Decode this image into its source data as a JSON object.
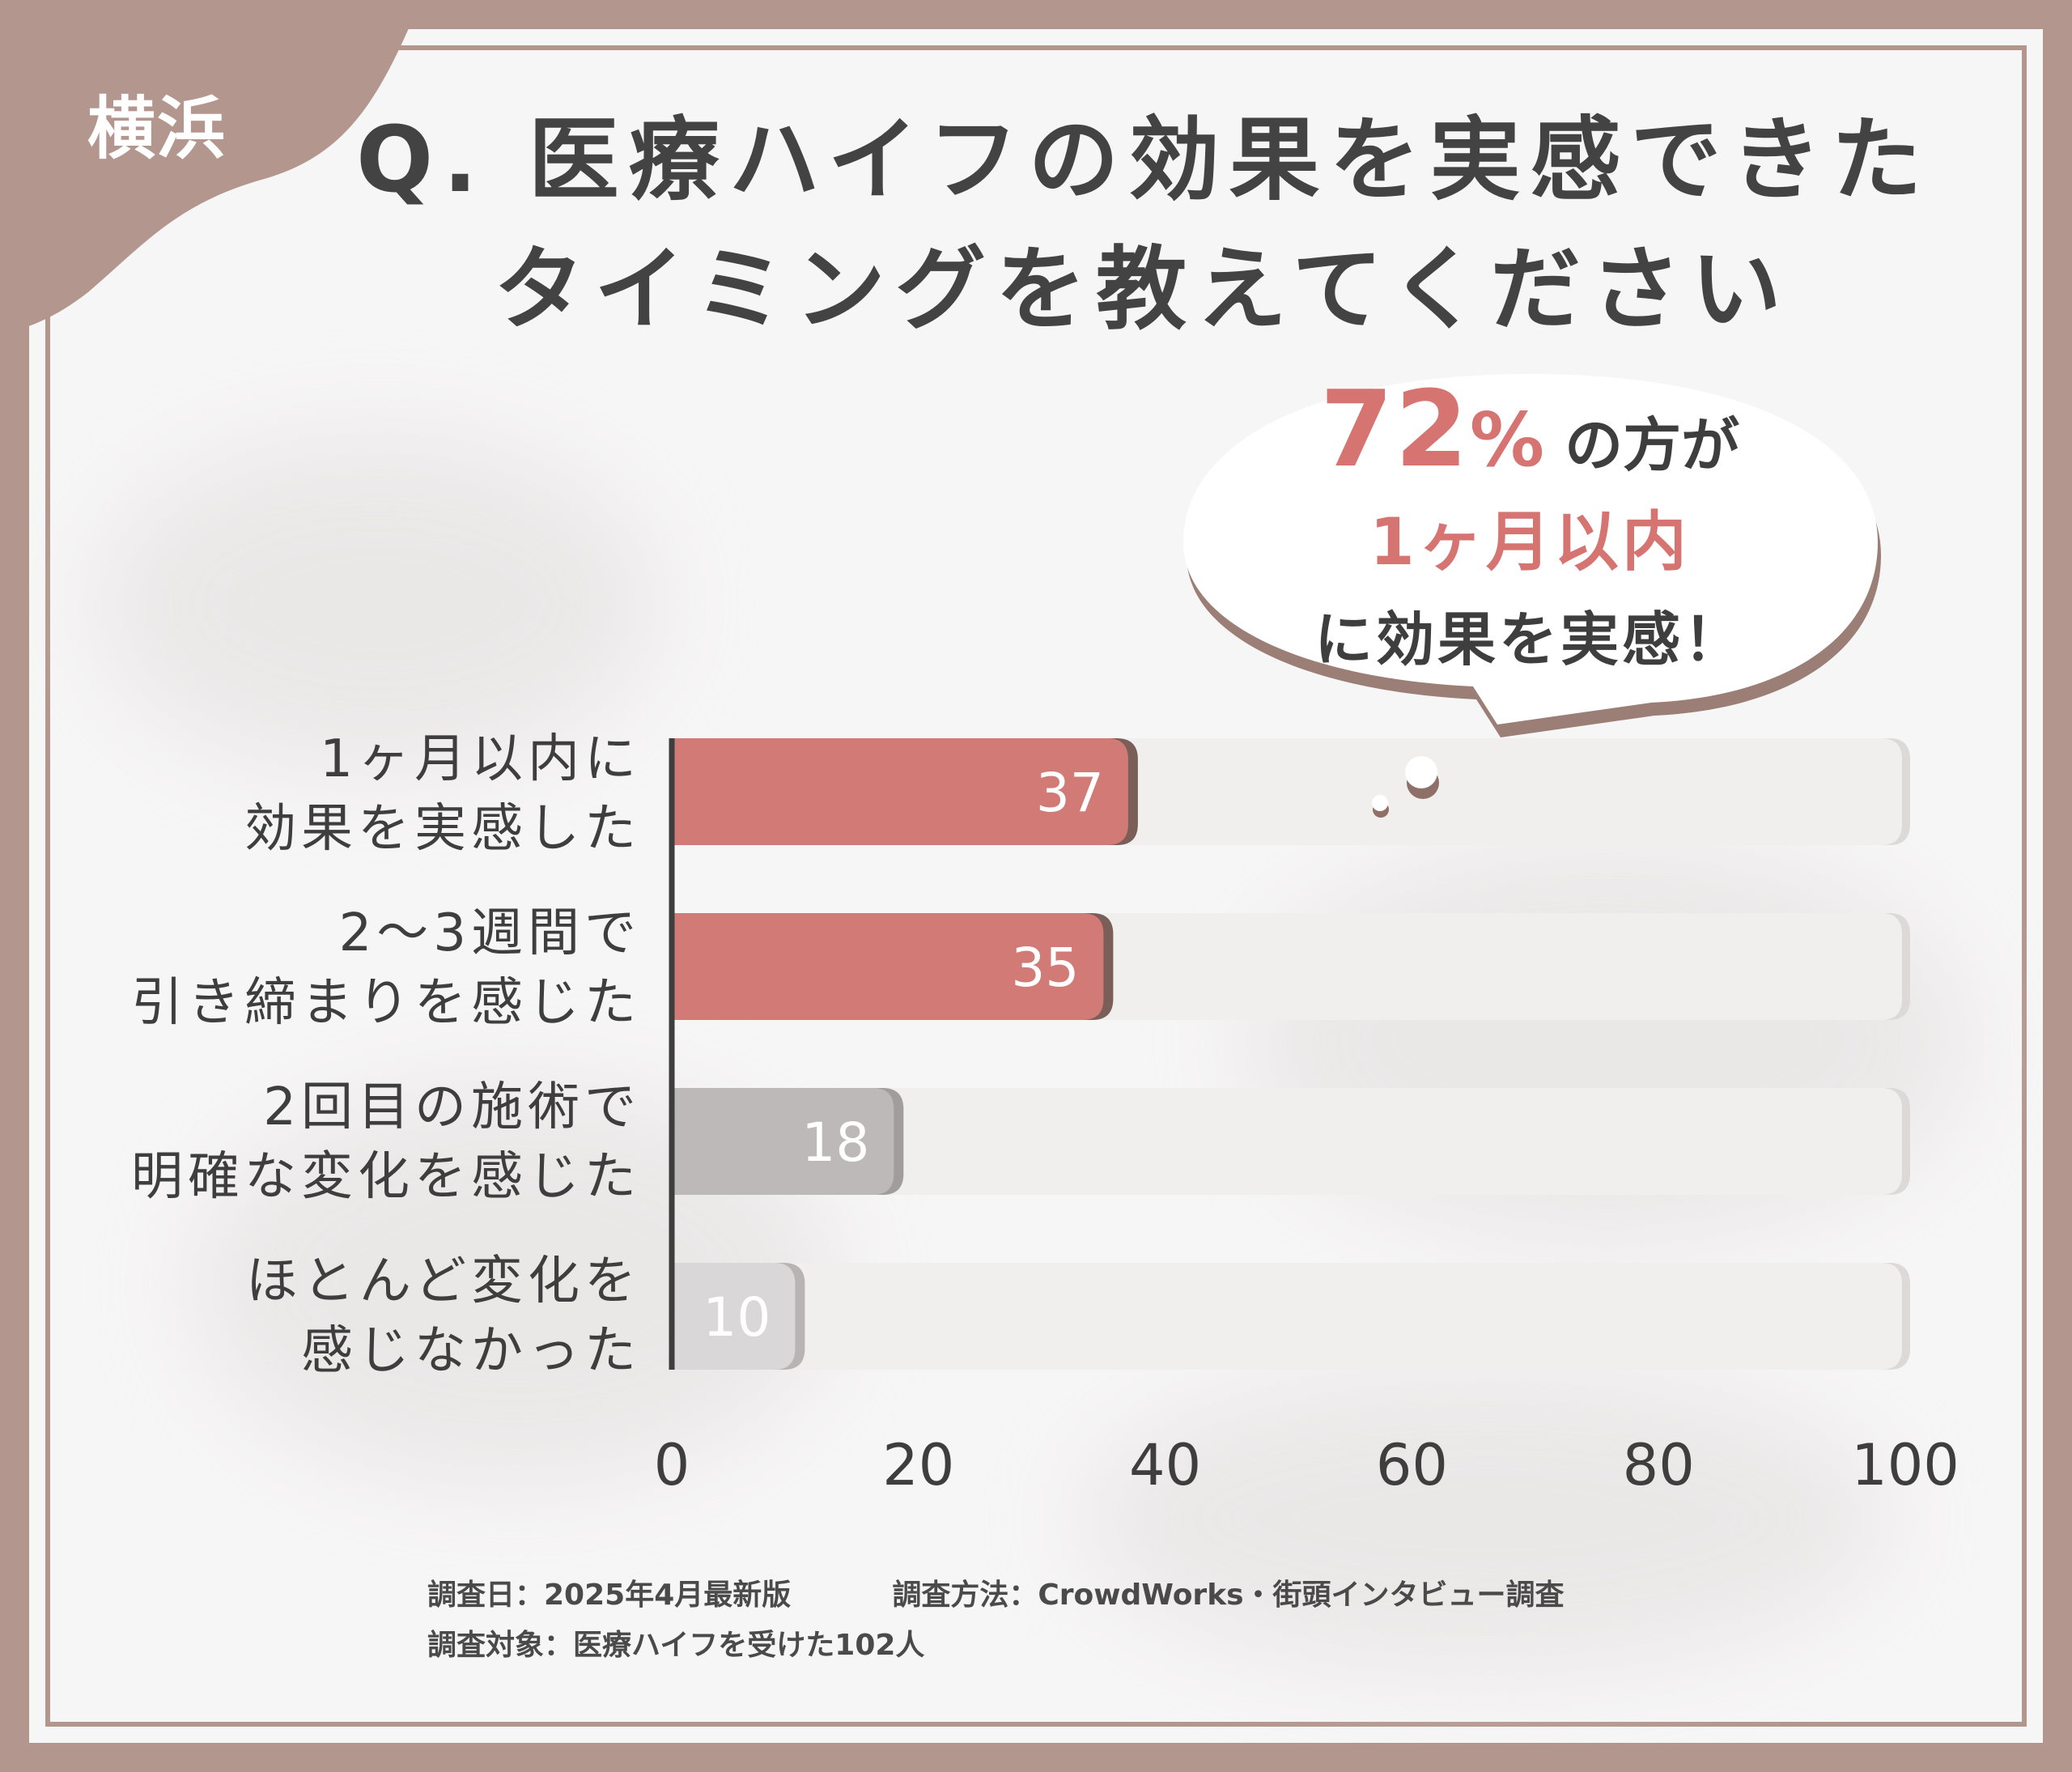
{
  "badge": "横浜",
  "title": {
    "line1": "Q. 医療ハイフの効果を実感できた",
    "line2": "タイミングを教えてください"
  },
  "callout": {
    "percent": "72",
    "percent_sign": "%",
    "percent_suffix": "の方が",
    "highlight": "1ヶ月以内",
    "tail": "に効果を実感！"
  },
  "categories": [
    {
      "line1": "1ヶ月以内に",
      "line2": "効果を実感した"
    },
    {
      "line1": "2〜3週間で",
      "line2": "引き締まりを感じた"
    },
    {
      "line1": "2回目の施術で",
      "line2": "明確な変化を感じた"
    },
    {
      "line1": "ほとんど変化を",
      "line2": "感じなかった"
    }
  ],
  "chart_data": {
    "type": "bar",
    "orientation": "horizontal",
    "categories": [
      "1ヶ月以内に効果を実感した",
      "2〜3週間で引き締まりを感じた",
      "2回目の施術で明確な変化を感じた",
      "ほとんど変化を感じなかった"
    ],
    "values": [
      37,
      35,
      18,
      10
    ],
    "data_labels": [
      "37",
      "35",
      "18",
      "10"
    ],
    "xlim": [
      0,
      100
    ],
    "xticks": [
      "0",
      "20",
      "40",
      "60",
      "80",
      "100"
    ],
    "grid": false,
    "colors": {
      "bars": [
        "#d27a76",
        "#d27a76",
        "#bdb9b8",
        "#d9d7d7"
      ],
      "shadows": [
        "#7a5e58",
        "#7a5e58",
        "#a19d9c",
        "#b7b4b3"
      ],
      "track": "#f1efee",
      "track_shadow": "#dcd9d8",
      "axis": "#3e3e3e"
    }
  },
  "footer": {
    "date": "調査日：2025年4月最新版",
    "method": "調査方法：CrowdWorks・街頭インタビュー調査",
    "target": "調査対象：医療ハイフを受けた102人"
  },
  "colors": {
    "frame": "#b3968d",
    "accent": "#d67472",
    "title": "#434343"
  }
}
